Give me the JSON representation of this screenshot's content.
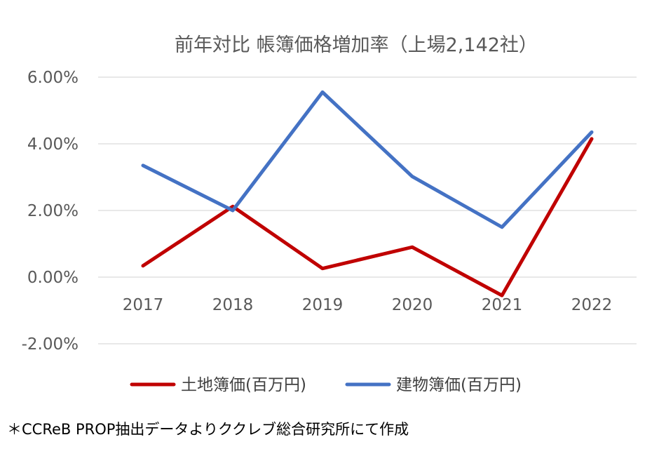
{
  "chart_data": {
    "type": "line",
    "title": "前年対比 帳簿価格増加率（上場2,142社）",
    "categories": [
      "2017",
      "2018",
      "2019",
      "2020",
      "2021",
      "2022"
    ],
    "series": [
      {
        "name": "土地簿価(百万円)",
        "color": "#c00000",
        "values": [
          0.0034,
          0.0212,
          0.0026,
          0.009,
          -0.0055,
          0.0415
        ]
      },
      {
        "name": "建物簿価(百万円)",
        "color": "#4472c4",
        "values": [
          0.0335,
          0.02,
          0.0555,
          0.0302,
          0.015,
          0.0435
        ]
      }
    ],
    "ylim": [
      -0.02,
      0.06
    ],
    "yticks": [
      0.06,
      0.04,
      0.02,
      0.0,
      -0.02
    ],
    "ytick_labels": [
      "6.00%",
      "4.00%",
      "2.00%",
      "0.00%",
      "-2.00%"
    ],
    "grid": true,
    "legend": "bottom"
  },
  "footnote": "＊CCReB PROP抽出データよりククレブ総合研究所にて作成"
}
